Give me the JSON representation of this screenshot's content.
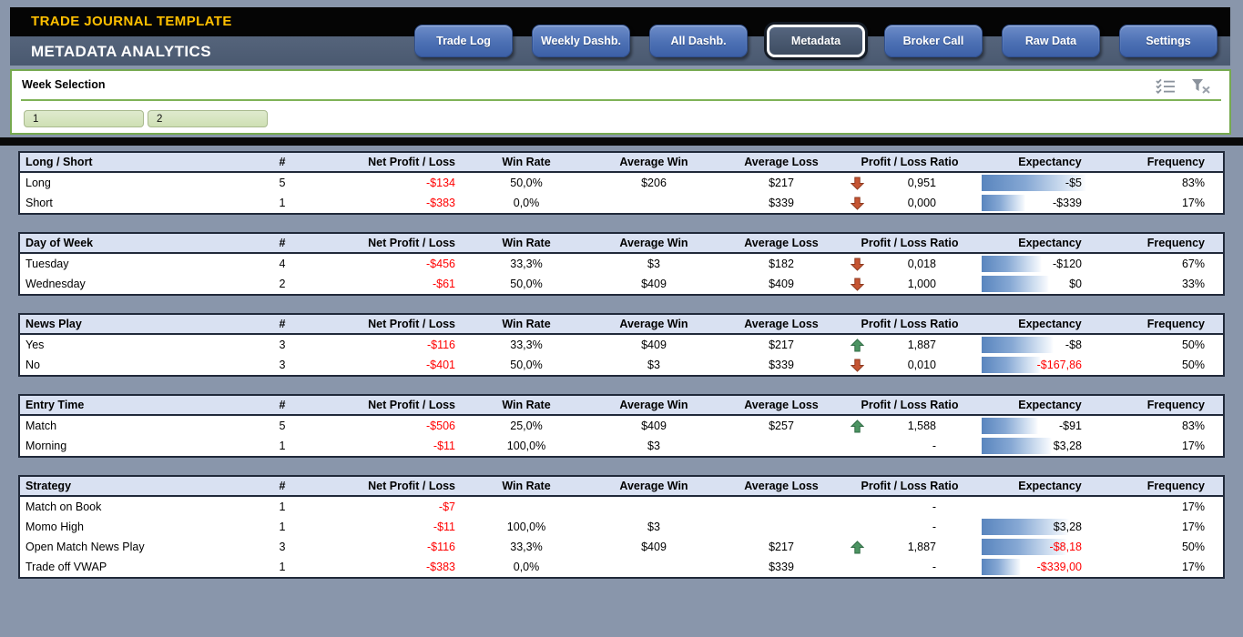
{
  "header": {
    "app_title": "TRADE JOURNAL TEMPLATE",
    "page_title": "METADATA ANALYTICS",
    "nav_buttons": [
      {
        "label": "Trade Log",
        "active": false
      },
      {
        "label": "Weekly Dashb.",
        "active": false
      },
      {
        "label": "All Dashb.",
        "active": false
      },
      {
        "label": "Metadata",
        "active": true
      },
      {
        "label": "Broker Call",
        "active": false
      },
      {
        "label": "Raw Data",
        "active": false
      },
      {
        "label": "Settings",
        "active": false
      }
    ]
  },
  "slicer": {
    "title": "Week Selection",
    "items": [
      {
        "label": "1",
        "selected": true
      },
      {
        "label": "2",
        "selected": true
      }
    ],
    "icons": [
      "multi-select-icon",
      "clear-filter-icon"
    ]
  },
  "columns": [
    "#",
    "Net Profit / Loss",
    "Win Rate",
    "Average Win",
    "Average Loss",
    "Profit / Loss Ratio",
    "Expectancy",
    "Frequency"
  ],
  "ratio_icons": {
    "up": "up-arrow-icon",
    "down": "down-arrow-icon"
  },
  "tables": [
    {
      "title": "Long / Short",
      "rows": [
        {
          "label": "Long",
          "count": "5",
          "net_pl": "-$134",
          "win_rate": "50,0%",
          "avg_win": "$206",
          "avg_loss": "$217",
          "ratio_icon": "down",
          "ratio": "0,951",
          "expectancy": "-$5",
          "exp_bar_pct": 96,
          "exp_red": false,
          "frequency": "83%"
        },
        {
          "label": "Short",
          "count": "1",
          "net_pl": "-$383",
          "win_rate": "0,0%",
          "avg_win": "",
          "avg_loss": "$339",
          "ratio_icon": "down",
          "ratio": "0,000",
          "expectancy": "-$339",
          "exp_bar_pct": 40,
          "exp_red": false,
          "frequency": "17%"
        }
      ]
    },
    {
      "title": "Day of Week",
      "rows": [
        {
          "label": "Tuesday",
          "count": "4",
          "net_pl": "-$456",
          "win_rate": "33,3%",
          "avg_win": "$3",
          "avg_loss": "$182",
          "ratio_icon": "down",
          "ratio": "0,018",
          "expectancy": "-$120",
          "exp_bar_pct": 55,
          "exp_red": false,
          "frequency": "67%"
        },
        {
          "label": "Wednesday",
          "count": "2",
          "net_pl": "-$61",
          "win_rate": "50,0%",
          "avg_win": "$409",
          "avg_loss": "$409",
          "ratio_icon": "down",
          "ratio": "1,000",
          "expectancy": "$0",
          "exp_bar_pct": 62,
          "exp_red": false,
          "frequency": "33%"
        }
      ]
    },
    {
      "title": "News Play",
      "rows": [
        {
          "label": "Yes",
          "count": "3",
          "net_pl": "-$116",
          "win_rate": "33,3%",
          "avg_win": "$409",
          "avg_loss": "$217",
          "ratio_icon": "up",
          "ratio": "1,887",
          "expectancy": "-$8",
          "exp_bar_pct": 66,
          "exp_red": false,
          "frequency": "50%"
        },
        {
          "label": "No",
          "count": "3",
          "net_pl": "-$401",
          "win_rate": "50,0%",
          "avg_win": "$3",
          "avg_loss": "$339",
          "ratio_icon": "down",
          "ratio": "0,010",
          "expectancy": "-$167,86",
          "exp_bar_pct": 54,
          "exp_red": true,
          "frequency": "50%"
        }
      ]
    },
    {
      "title": "Entry Time",
      "rows": [
        {
          "label": "Match",
          "count": "5",
          "net_pl": "-$506",
          "win_rate": "25,0%",
          "avg_win": "$409",
          "avg_loss": "$257",
          "ratio_icon": "up",
          "ratio": "1,588",
          "expectancy": "-$91",
          "exp_bar_pct": 52,
          "exp_red": false,
          "frequency": "83%"
        },
        {
          "label": "Morning",
          "count": "1",
          "net_pl": "-$11",
          "win_rate": "100,0%",
          "avg_win": "$3",
          "avg_loss": "",
          "ratio_icon": "none",
          "ratio": "-",
          "expectancy": "$3,28",
          "exp_bar_pct": 64,
          "exp_red": false,
          "frequency": "17%"
        }
      ]
    },
    {
      "title": "Strategy",
      "rows": [
        {
          "label": "Match on Book",
          "count": "1",
          "net_pl": "-$7",
          "win_rate": "",
          "avg_win": "",
          "avg_loss": "",
          "ratio_icon": "none",
          "ratio": "-",
          "expectancy": "",
          "exp_bar_pct": 0,
          "exp_red": false,
          "frequency": "17%"
        },
        {
          "label": "Momo High",
          "count": "1",
          "net_pl": "-$11",
          "win_rate": "100,0%",
          "avg_win": "$3",
          "avg_loss": "",
          "ratio_icon": "none",
          "ratio": "-",
          "expectancy": "$3,28",
          "exp_bar_pct": 80,
          "exp_red": false,
          "frequency": "17%"
        },
        {
          "label": "Open Match News Play",
          "count": "3",
          "net_pl": "-$116",
          "win_rate": "33,3%",
          "avg_win": "$409",
          "avg_loss": "$217",
          "ratio_icon": "up",
          "ratio": "1,887",
          "expectancy": "-$8,18",
          "exp_bar_pct": 78,
          "exp_red": true,
          "frequency": "50%"
        },
        {
          "label": "Trade off VWAP",
          "count": "1",
          "net_pl": "-$383",
          "win_rate": "0,0%",
          "avg_win": "",
          "avg_loss": "$339",
          "ratio_icon": "none",
          "ratio": "-",
          "expectancy": "-$339,00",
          "exp_bar_pct": 36,
          "exp_red": true,
          "frequency": "17%"
        }
      ]
    }
  ],
  "colors": {
    "accent_gold": "#FFC000",
    "nav_button_blue": "#4472C4",
    "active_tab_bg": "#44546A",
    "slicer_green": "#70AD47",
    "negative_red": "#FF0000",
    "databar_blue": "#638EC6",
    "table_header_fill": "#D9E1F2",
    "page_bg": "#8996AB"
  }
}
